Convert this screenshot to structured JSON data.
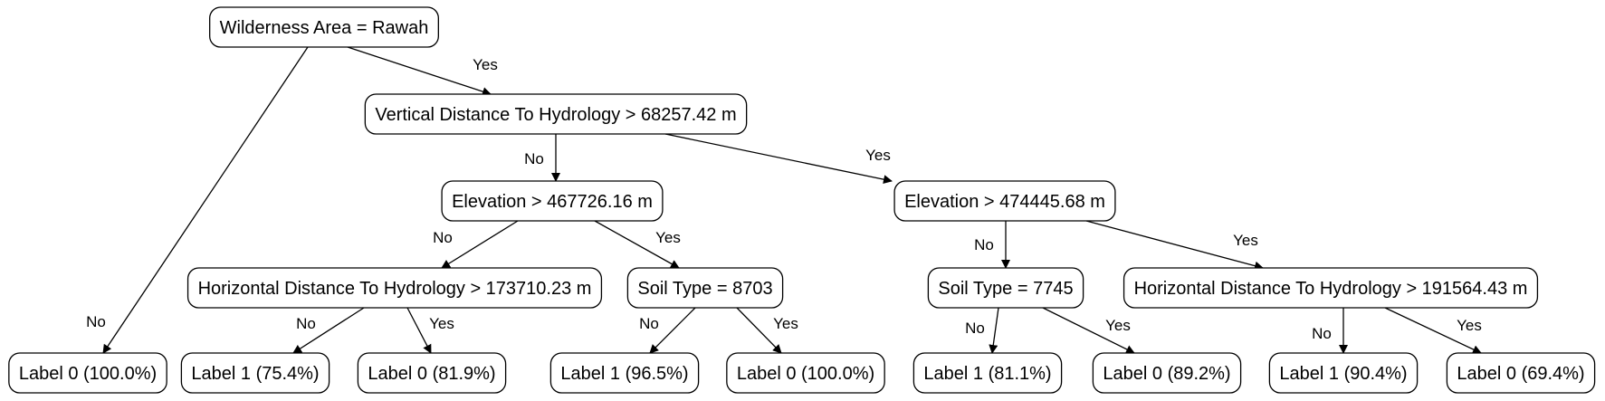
{
  "tree": {
    "nodes": [
      {
        "id": "n0",
        "label": "Wilderness Area = Rawah"
      },
      {
        "id": "n1",
        "label": "Label 0 (100.0%)"
      },
      {
        "id": "n2",
        "label": "Vertical Distance To Hydrology > 68257.42 m"
      },
      {
        "id": "n3",
        "label": "Elevation > 467726.16 m"
      },
      {
        "id": "n4",
        "label": "Elevation > 474445.68 m"
      },
      {
        "id": "n5",
        "label": "Horizontal Distance To Hydrology > 173710.23 m"
      },
      {
        "id": "n6",
        "label": "Soil Type = 8703"
      },
      {
        "id": "n7",
        "label": "Soil Type = 7745"
      },
      {
        "id": "n8",
        "label": "Horizontal Distance To Hydrology > 191564.43 m"
      },
      {
        "id": "n9",
        "label": "Label 1 (75.4%)"
      },
      {
        "id": "n10",
        "label": "Label 0 (81.9%)"
      },
      {
        "id": "n11",
        "label": "Label 1 (96.5%)"
      },
      {
        "id": "n12",
        "label": "Label 0 (100.0%)"
      },
      {
        "id": "n13",
        "label": "Label 1 (81.1%)"
      },
      {
        "id": "n14",
        "label": "Label 0 (89.2%)"
      },
      {
        "id": "n15",
        "label": "Label 1 (90.4%)"
      },
      {
        "id": "n16",
        "label": "Label 0 (69.4%)"
      }
    ],
    "edges": [
      {
        "from": "n0",
        "to": "n1",
        "label": "No"
      },
      {
        "from": "n0",
        "to": "n2",
        "label": "Yes"
      },
      {
        "from": "n2",
        "to": "n3",
        "label": "No"
      },
      {
        "from": "n2",
        "to": "n4",
        "label": "Yes"
      },
      {
        "from": "n3",
        "to": "n5",
        "label": "No"
      },
      {
        "from": "n3",
        "to": "n6",
        "label": "Yes"
      },
      {
        "from": "n4",
        "to": "n7",
        "label": "No"
      },
      {
        "from": "n4",
        "to": "n8",
        "label": "Yes"
      },
      {
        "from": "n5",
        "to": "n9",
        "label": "No"
      },
      {
        "from": "n5",
        "to": "n10",
        "label": "Yes"
      },
      {
        "from": "n6",
        "to": "n11",
        "label": "No"
      },
      {
        "from": "n6",
        "to": "n12",
        "label": "Yes"
      },
      {
        "from": "n7",
        "to": "n13",
        "label": "No"
      },
      {
        "from": "n7",
        "to": "n14",
        "label": "Yes"
      },
      {
        "from": "n8",
        "to": "n15",
        "label": "No"
      },
      {
        "from": "n8",
        "to": "n16",
        "label": "Yes"
      }
    ]
  }
}
